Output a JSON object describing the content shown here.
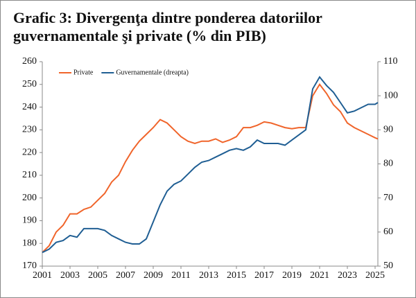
{
  "chart_data": {
    "type": "line",
    "title": "Grafic 3: Divergenţa dintre ponderea datoriilor guvernamentale şi private (% din PIB)",
    "x": [
      2001,
      2001.5,
      2002,
      2002.5,
      2003,
      2003.5,
      2004,
      2004.5,
      2005,
      2005.5,
      2006,
      2006.5,
      2007,
      2007.5,
      2008,
      2008.5,
      2009,
      2009.5,
      2010,
      2010.5,
      2011,
      2011.5,
      2012,
      2012.5,
      2013,
      2013.5,
      2014,
      2014.5,
      2015,
      2015.5,
      2016,
      2016.5,
      2017,
      2017.5,
      2018,
      2018.5,
      2019,
      2019.5,
      2020,
      2020.5,
      2021,
      2021.5,
      2022,
      2022.5,
      2023,
      2023.5,
      2024,
      2024.5,
      2025,
      2025.2
    ],
    "series": [
      {
        "name": "Private",
        "color": "#f0642a",
        "axis": "y",
        "values": [
          176,
          179,
          185,
          188,
          193,
          193,
          195,
          196,
          199,
          202,
          207,
          210,
          216,
          221,
          225,
          228,
          231,
          234.5,
          233,
          230,
          227,
          225,
          224,
          225,
          225,
          226,
          224.5,
          225.5,
          227,
          231,
          231,
          232,
          233.5,
          233,
          232,
          231,
          230.5,
          231,
          231,
          245,
          250,
          246,
          241,
          238,
          233,
          231,
          229.5,
          228,
          226.5,
          226
        ]
      },
      {
        "name": "Guvernamentale (dreapta)",
        "color": "#1f5e93",
        "axis": "y2",
        "values": [
          54,
          55,
          57,
          57.5,
          59,
          58.5,
          61,
          61,
          61,
          60.5,
          59,
          58,
          57,
          56.5,
          56.5,
          58,
          63,
          68,
          72,
          74,
          75,
          77,
          79,
          80.5,
          81,
          82,
          83,
          84,
          84.5,
          84,
          85,
          87,
          86,
          86,
          86,
          85.5,
          87,
          88.5,
          90,
          102,
          105.5,
          103,
          101,
          98,
          95,
          95.5,
          96.5,
          97.5,
          97.5,
          98
        ]
      }
    ],
    "xlim": [
      2001,
      2025.2
    ],
    "xticks": [
      2001,
      2003,
      2005,
      2007,
      2009,
      2011,
      2013,
      2015,
      2017,
      2019,
      2021,
      2023,
      2025
    ],
    "ylim": [
      170,
      260
    ],
    "yticks": [
      170,
      180,
      190,
      200,
      210,
      220,
      230,
      240,
      250,
      260
    ],
    "y2lim": [
      50,
      110
    ],
    "y2ticks": [
      50,
      60,
      70,
      80,
      90,
      100,
      110
    ],
    "legend": "top-left"
  }
}
